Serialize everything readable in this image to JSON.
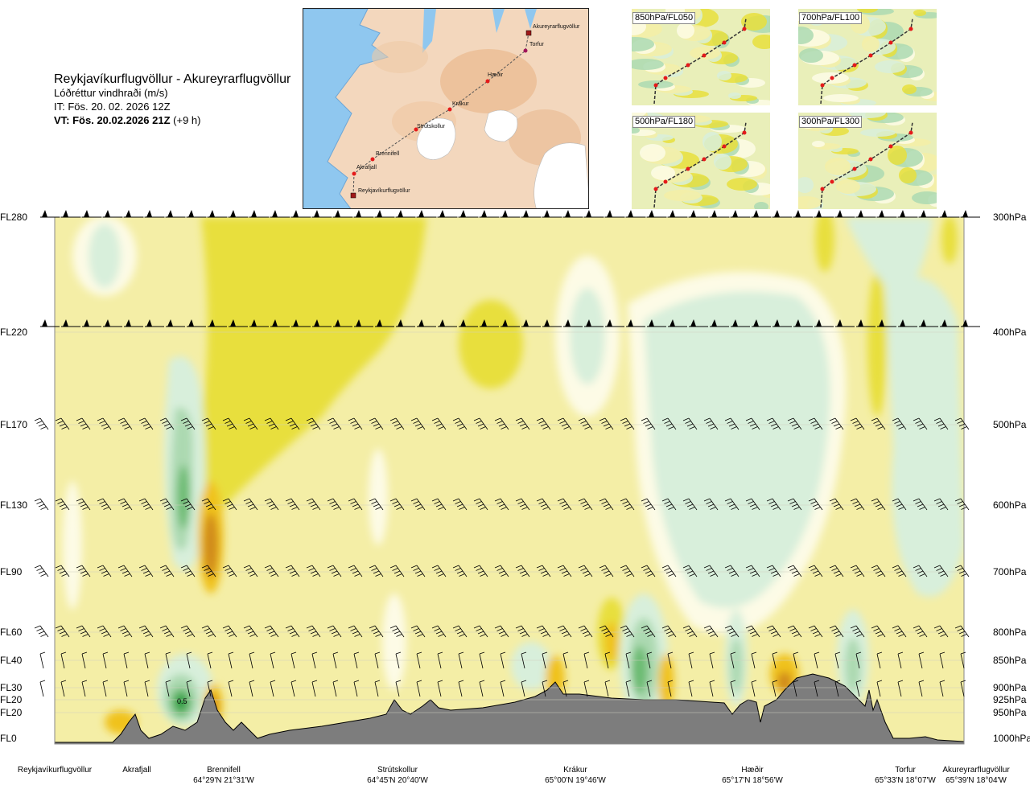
{
  "title": {
    "route": "Reykjavíkurflugvöllur - Akureyrarflugvöllur",
    "variable": "Lóðréttur vindhraði (m/s)",
    "issue_time": "IT: Fös. 20. 02. 2026 12Z",
    "valid_time_bold": "VT: Fös. 20.02.2026 21Z",
    "valid_time_offset": " (+9 h)"
  },
  "route_map": {
    "waypoints": [
      "Akureyrarflugvöllur",
      "Torfur",
      "Hæðir",
      "Krákur",
      "Strútskollur",
      "Brennifell",
      "Akrafjall",
      "Reykjavíkurflugvöllur"
    ]
  },
  "thumbnails": [
    {
      "label": "850hPa/FL050"
    },
    {
      "label": "700hPa/FL100"
    },
    {
      "label": "500hPa/FL180"
    },
    {
      "label": "300hPa/FL300"
    }
  ],
  "chart_data": {
    "type": "heatmap",
    "title": "Lóðréttur vindhraði (m/s)",
    "left_axis_labels": [
      "FL280",
      "FL220",
      "FL170",
      "FL130",
      "FL90",
      "FL60",
      "FL40",
      "FL30",
      "FL20",
      "FL20",
      "FL0"
    ],
    "right_axis_labels": [
      "300hPa",
      "400hPa",
      "500hPa",
      "600hPa",
      "700hPa",
      "800hPa",
      "850hPa",
      "900hPa",
      "925hPa",
      "950hPa",
      "1000hPa"
    ],
    "pressure_levels_hPa": [
      300,
      400,
      500,
      600,
      700,
      800,
      850,
      900,
      925,
      950,
      1000
    ],
    "x_locations": [
      {
        "name": "Reykjavíkurflugvöllur",
        "coord": ""
      },
      {
        "name": "Akrafjall",
        "coord": ""
      },
      {
        "name": "Brennifell",
        "coord": "64°29'N 21°31'W"
      },
      {
        "name": "Strútskollur",
        "coord": "64°45'N 20°40'W"
      },
      {
        "name": "Krákur",
        "coord": "65°00'N 19°46'W"
      },
      {
        "name": "Hæðir",
        "coord": "65°17'N 18°56'W"
      },
      {
        "name": "Torfur",
        "coord": "65°33'N 18°07'W"
      },
      {
        "name": "Akureyrarflugvöllur",
        "coord": "65°39'N 18°04'W"
      }
    ],
    "contour_label": "0.5",
    "colors": {
      "strong_down": "#d08a1a",
      "moderate_down": "#f0c21a",
      "weak_down": "#e8df3c",
      "slight_down": "#f4eea6",
      "neutral": "#fdfbe6",
      "slight_up": "#d8efdb",
      "weak_up": "#acd9b1",
      "moderate_up": "#6cbb72",
      "strong_up": "#1f9a3a",
      "terrain": "#7d7d7d"
    }
  }
}
